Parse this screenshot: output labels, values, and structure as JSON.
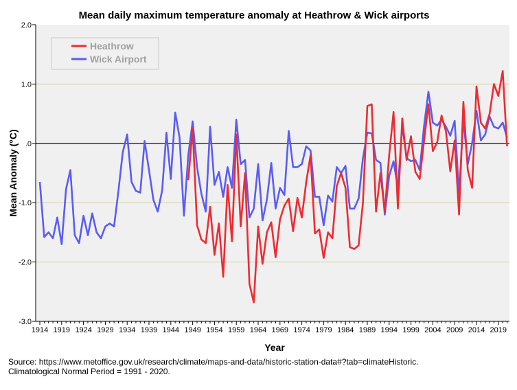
{
  "chart_data": {
    "type": "line",
    "title": "Mean daily maximum temperature anomaly at Heathrow & Wick airports",
    "xlabel": "Year",
    "ylabel": "Mean Anomaly (°C)",
    "xlim": [
      1914,
      2021
    ],
    "ylim": [
      -3.0,
      2.0
    ],
    "yticks": [
      "2.0",
      "1.0",
      ".0",
      "-1.0",
      "-2.0",
      "-3.0"
    ],
    "ytick_values": [
      2,
      1,
      0,
      -1,
      -2,
      -3
    ],
    "xticks": [
      "1914",
      "1919",
      "1924",
      "1929",
      "1934",
      "1939",
      "1944",
      "1949",
      "1954",
      "1959",
      "1964",
      "1969",
      "1974",
      "1979",
      "1984",
      "1989",
      "1994",
      "1999",
      "2004",
      "2009",
      "2014",
      "2019"
    ],
    "grid": true,
    "legend_position": "top-left",
    "series": [
      {
        "name": "Heathrow",
        "color": "#ee2b33",
        "start_year": 1948,
        "values": [
          -0.62,
          0.25,
          -1.38,
          -1.62,
          -1.68,
          -1.07,
          -1.88,
          -1.35,
          -2.25,
          -0.7,
          -1.65,
          0.15,
          -1.4,
          -0.5,
          -2.37,
          -2.68,
          -1.4,
          -2.03,
          -1.5,
          -1.33,
          -1.92,
          -1.28,
          -1.05,
          -0.93,
          -1.48,
          -0.92,
          -1.25,
          -0.65,
          -0.2,
          -1.52,
          -1.45,
          -1.93,
          -1.5,
          -1.6,
          -0.72,
          -0.5,
          -0.75,
          -1.75,
          -1.78,
          -1.72,
          -1.0,
          0.63,
          0.66,
          -1.15,
          -0.5,
          -1.15,
          -0.2,
          0.53,
          -1.1,
          0.42,
          -0.28,
          0.12,
          -0.48,
          -0.6,
          0.05,
          0.66,
          -0.13,
          0.02,
          0.47,
          0.2,
          -0.47,
          0.05,
          -1.2,
          0.7,
          -0.45,
          -0.75,
          0.96,
          0.35,
          0.25,
          0.5,
          1.0,
          0.8,
          1.22,
          -0.05
        ]
      },
      {
        "name": "Wick Airport",
        "color": "#5a5cf5",
        "start_year": 1914,
        "values": [
          -0.65,
          -1.58,
          -1.5,
          -1.6,
          -1.25,
          -1.7,
          -0.77,
          -0.45,
          -1.55,
          -1.68,
          -1.22,
          -1.55,
          -1.18,
          -1.5,
          -1.6,
          -1.4,
          -1.35,
          -1.4,
          -0.8,
          -0.15,
          0.15,
          -0.65,
          -0.8,
          -0.83,
          0.04,
          -0.45,
          -0.95,
          -1.15,
          -0.8,
          0.18,
          -0.6,
          0.52,
          0.1,
          -1.22,
          -0.2,
          0.37,
          -0.4,
          -0.85,
          -1.15,
          0.28,
          -0.7,
          -0.48,
          -0.9,
          -0.4,
          -0.75,
          0.4,
          -0.35,
          -0.28,
          -1.25,
          -1.1,
          -0.35,
          -1.3,
          -0.95,
          -0.33,
          -1.1,
          -0.75,
          -0.87,
          0.21,
          -0.4,
          -0.4,
          -0.35,
          -0.05,
          -0.12,
          -0.9,
          -0.9,
          -1.38,
          -0.88,
          -0.98,
          -0.4,
          -0.5,
          -0.38,
          -1.1,
          -1.1,
          -0.93,
          -0.25,
          0.18,
          0.17,
          -0.28,
          -0.33,
          -1.2,
          -0.55,
          -0.3,
          -0.75,
          0.3,
          -0.25,
          -0.3,
          -0.28,
          -0.45,
          0.3,
          0.87,
          0.35,
          0.3,
          0.4,
          0.28,
          0.13,
          0.38,
          -0.85,
          0.4,
          -0.35,
          0.0,
          0.55,
          0.05,
          0.15,
          0.45,
          0.28,
          0.25,
          0.35,
          0.1
        ]
      }
    ]
  },
  "source_lines": [
    "Source: https://www.metoffice.gov.uk/research/climate/maps-and-data/historic-station-data#?tab=climateHistoric.",
    "Climatological Normal Period = 1991 - 2020."
  ]
}
